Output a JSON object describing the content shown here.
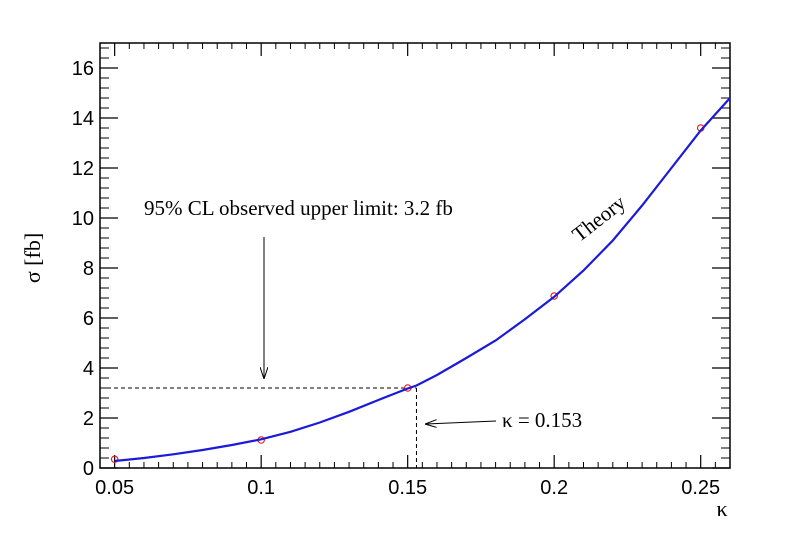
{
  "chart_data": {
    "type": "scatter",
    "xlabel": "κ",
    "ylabel": "σ [fb]",
    "xlim": [
      0.045,
      0.26
    ],
    "ylim": [
      0,
      17
    ],
    "x_ticks": [
      0.05,
      0.1,
      0.15,
      0.2,
      0.25
    ],
    "x_tick_labels": [
      "0.05",
      "0.1",
      "0.15",
      "0.2",
      "0.25"
    ],
    "y_ticks": [
      0,
      2,
      4,
      6,
      8,
      10,
      12,
      14,
      16
    ],
    "y_tick_labels": [
      "0",
      "2",
      "4",
      "6",
      "8",
      "10",
      "12",
      "14",
      "16"
    ],
    "grid": false,
    "series": [
      {
        "type": "scatter",
        "marker": "open-circle",
        "color": "#e8201a",
        "x": [
          0.05,
          0.1,
          0.15,
          0.2,
          0.25
        ],
        "y": [
          0.35,
          1.12,
          3.2,
          6.88,
          13.6
        ]
      },
      {
        "name": "Theory",
        "type": "line",
        "color": "#1a1ad8",
        "x": [
          0.05,
          0.06,
          0.07,
          0.08,
          0.09,
          0.1,
          0.11,
          0.12,
          0.13,
          0.14,
          0.15,
          0.153,
          0.16,
          0.17,
          0.18,
          0.19,
          0.2,
          0.21,
          0.22,
          0.23,
          0.24,
          0.25,
          0.26
        ],
        "y": [
          0.28,
          0.4,
          0.55,
          0.72,
          0.92,
          1.15,
          1.45,
          1.82,
          2.25,
          2.72,
          3.18,
          3.3,
          3.72,
          4.4,
          5.1,
          5.95,
          6.85,
          7.9,
          9.1,
          10.5,
          12.0,
          13.5,
          14.8
        ]
      }
    ],
    "annotations": {
      "limit_text": "95% CL observed upper limit: 3.2 fb",
      "limit_value": 3.2,
      "kappa_text": "κ = 0.153",
      "kappa_value": 0.153,
      "theory_label": "Theory"
    }
  }
}
